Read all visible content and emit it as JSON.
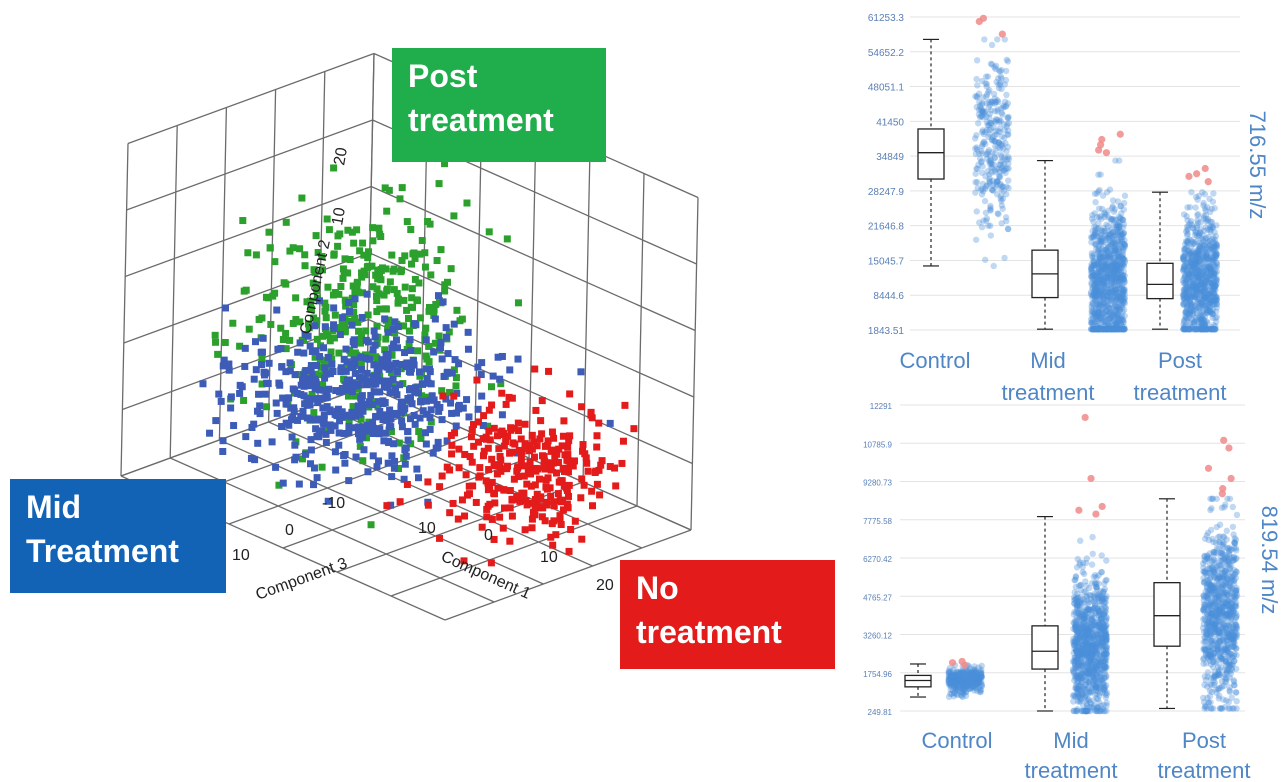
{
  "chart_data": [
    {
      "type": "scatter",
      "subtype": "3d-scatter",
      "axis_labels": [
        "Component 1",
        "Component 2",
        "Component 3"
      ],
      "axis_ticks": {
        "component1": [
          "10",
          "0",
          "10",
          "20"
        ],
        "component2": [
          "10",
          "20"
        ],
        "component3": [
          "10",
          "0",
          "-10"
        ]
      },
      "ranges": {
        "component1": [
          -20,
          25
        ],
        "component2": [
          -10,
          25
        ],
        "component3": [
          -15,
          15
        ]
      },
      "group_labels": {
        "post": "Post\ntreatment",
        "mid": "Mid\nTreatment",
        "no": "No\ntreatment"
      },
      "series": [
        {
          "key": "post",
          "name": "Post treatment",
          "color": "#2ca02c",
          "count": 400,
          "center": [
            -3,
            8,
            1
          ],
          "spread": [
            5,
            6,
            5
          ]
        },
        {
          "key": "mid",
          "name": "Mid Treatment",
          "color": "#3c5cb8",
          "count": 500,
          "center": [
            -6,
            -2,
            -2
          ],
          "spread": [
            6,
            3,
            6
          ]
        },
        {
          "key": "no",
          "name": "No treatment",
          "color": "#e41b1b",
          "count": 300,
          "center": [
            16,
            -3,
            -3
          ],
          "spread": [
            4,
            3,
            4
          ]
        }
      ],
      "grid": true
    },
    {
      "type": "box",
      "ylabel": "716.55 m/z",
      "yticks": [
        "61253.3",
        "54652.2",
        "48051.1",
        "41450",
        "34849",
        "28247.9",
        "21646.8",
        "15045.7",
        "8444.6",
        "1843.51"
      ],
      "ylim": [
        1843.51,
        61253.3
      ],
      "categories": [
        "Control",
        "Mid\ntreatment",
        "Post\ntreatment"
      ],
      "boxes": [
        {
          "min": 14000,
          "q1": 30500,
          "median": 35500,
          "q3": 40000,
          "max": 57000,
          "outliers": [
            61000,
            60400,
            58000
          ],
          "points": 300,
          "point_center": 37000,
          "point_spread": 9000
        },
        {
          "min": 2000,
          "q1": 8000,
          "median": 12500,
          "q3": 17000,
          "max": 34000,
          "outliers": [
            36000,
            37000,
            38000,
            39000,
            35500
          ],
          "points": 900,
          "point_center": 11000,
          "point_spread": 7000
        },
        {
          "min": 2000,
          "q1": 7800,
          "median": 10500,
          "q3": 14500,
          "max": 28000,
          "outliers": [
            30000,
            31500,
            32500,
            31000
          ],
          "points": 800,
          "point_center": 11000,
          "point_spread": 6000
        }
      ],
      "grid": true
    },
    {
      "type": "box",
      "ylabel": "819.54 m/z",
      "yticks": [
        "12291",
        "10785.9",
        "9280.73",
        "7775.58",
        "6270.42",
        "4765.27",
        "3260.12",
        "1754.96",
        "249.81"
      ],
      "ylim": [
        249.81,
        12291
      ],
      "categories": [
        "Control",
        "Mid\ntreatment",
        "Post\ntreatment"
      ],
      "boxes": [
        {
          "min": 800,
          "q1": 1200,
          "median": 1450,
          "q3": 1650,
          "max": 2100,
          "outliers": [
            2150,
            2200,
            2050
          ],
          "points": 350,
          "point_center": 1450,
          "point_spread": 250
        },
        {
          "min": 250,
          "q1": 1900,
          "median": 2600,
          "q3": 3600,
          "max": 7900,
          "outliers": [
            8000,
            8150,
            8300,
            9400,
            11800
          ],
          "points": 900,
          "point_center": 2700,
          "point_spread": 1400
        },
        {
          "min": 350,
          "q1": 2800,
          "median": 4000,
          "q3": 5300,
          "max": 8600,
          "outliers": [
            8800,
            9000,
            9400,
            9800,
            10600,
            10900
          ],
          "points": 800,
          "point_center": 4000,
          "point_spread": 1700
        }
      ],
      "grid": true
    }
  ]
}
